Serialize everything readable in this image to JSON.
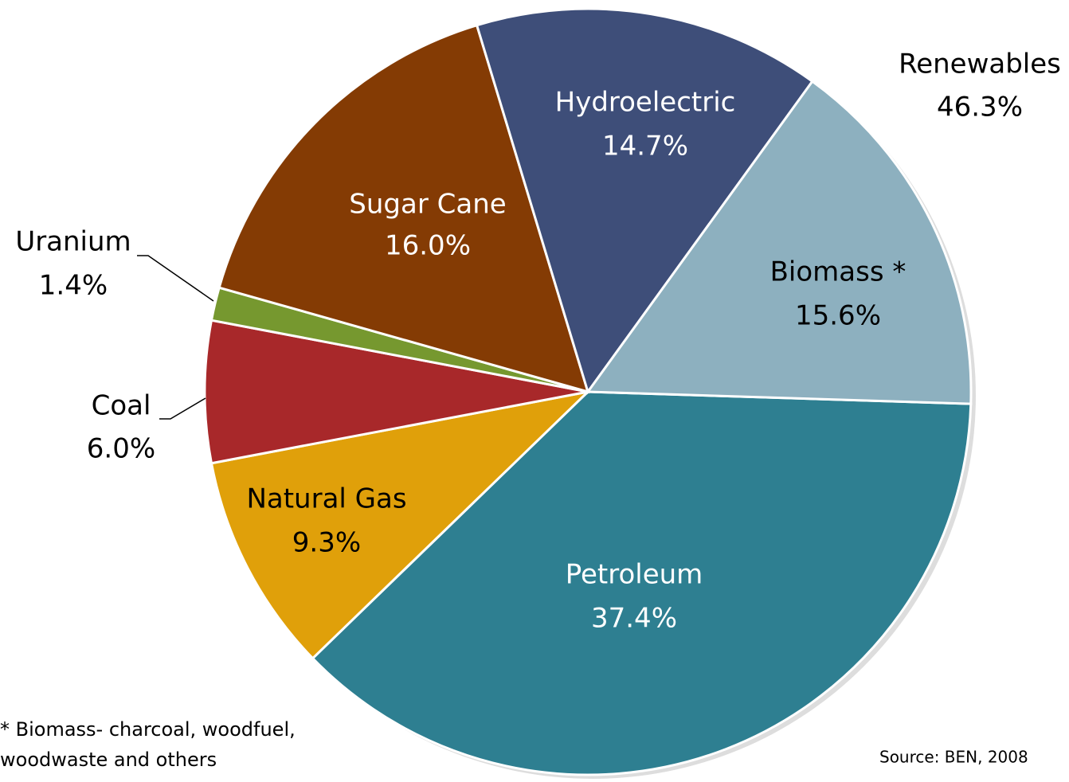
{
  "chart_data": {
    "type": "pie",
    "categories": [
      "Petroleum",
      "Natural Gas",
      "Coal",
      "Uranium",
      "Sugar Cane",
      "Hydroelectric",
      "Biomass *"
    ],
    "values": [
      37.4,
      9.3,
      6.0,
      1.4,
      16.0,
      14.7,
      15.6
    ],
    "value_labels": [
      "37.4%",
      "9.3%",
      "6.0%",
      "1.4%",
      "16.0%",
      "14.7%",
      "15.6%"
    ],
    "colors": [
      "#2e7f91",
      "#e0a00a",
      "#a8282a",
      "#76982f",
      "#843b04",
      "#3e4e79",
      "#8db0bf"
    ],
    "annotations": [
      {
        "text": "Renewables",
        "value": 46.3,
        "value_label": "46.3%"
      }
    ],
    "footnote": [
      "* Biomass- charcoal, woodfuel,",
      "woodwaste and others"
    ],
    "source": "Source: BEN, 2008"
  }
}
